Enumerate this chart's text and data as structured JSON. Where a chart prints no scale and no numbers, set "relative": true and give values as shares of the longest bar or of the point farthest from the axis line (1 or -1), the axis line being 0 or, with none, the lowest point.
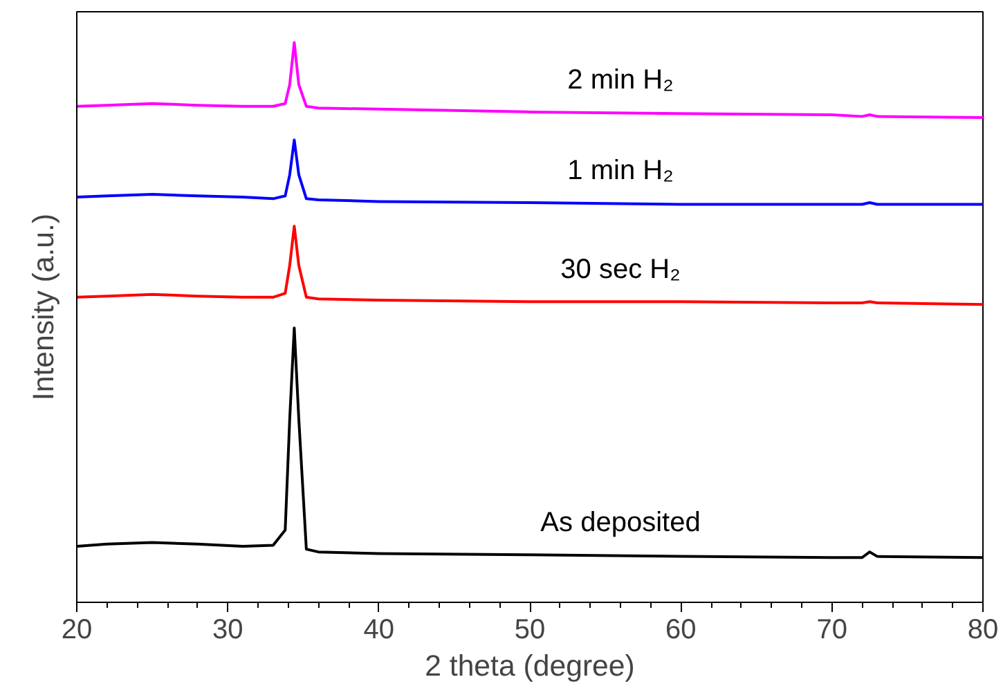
{
  "chart_data": {
    "type": "line",
    "relative": true,
    "xlabel": "2 theta (degree)",
    "ylabel": "Intensity (a.u.)",
    "xlim": [
      20,
      80
    ],
    "xticks": [
      20,
      30,
      40,
      50,
      60,
      70,
      80
    ],
    "grid": false,
    "legend": false,
    "marker": "none",
    "line_style": "solid",
    "tick_labels": "x",
    "x": [
      20,
      22,
      25,
      28,
      31,
      33,
      33.8,
      34.1,
      34.4,
      34.7,
      35.2,
      36,
      40,
      50,
      60,
      70,
      72,
      72.5,
      73,
      80
    ],
    "series": [
      {
        "name": "2 min H₂",
        "color": "#ff00ff",
        "values": [
          0.886,
          0.888,
          0.891,
          0.888,
          0.886,
          0.886,
          0.891,
          0.925,
          1.0,
          0.925,
          0.886,
          0.883,
          0.881,
          0.876,
          0.873,
          0.871,
          0.868,
          0.871,
          0.868,
          0.866
        ]
      },
      {
        "name": "1 min H₂",
        "color": "#0000ff",
        "values": [
          0.724,
          0.726,
          0.729,
          0.726,
          0.724,
          0.721,
          0.726,
          0.764,
          0.826,
          0.764,
          0.721,
          0.719,
          0.716,
          0.714,
          0.711,
          0.711,
          0.711,
          0.714,
          0.711,
          0.711
        ]
      },
      {
        "name": "30 sec H₂",
        "color": "#ff0000",
        "values": [
          0.545,
          0.547,
          0.55,
          0.547,
          0.545,
          0.545,
          0.552,
          0.602,
          0.672,
          0.602,
          0.545,
          0.542,
          0.54,
          0.537,
          0.537,
          0.535,
          0.535,
          0.537,
          0.535,
          0.532
        ]
      },
      {
        "name": "As deposited",
        "color": "#000000",
        "values": [
          0.1,
          0.104,
          0.107,
          0.104,
          0.1,
          0.102,
          0.129,
          0.328,
          0.49,
          0.328,
          0.095,
          0.09,
          0.087,
          0.085,
          0.082,
          0.08,
          0.08,
          0.09,
          0.082,
          0.08
        ]
      }
    ]
  }
}
